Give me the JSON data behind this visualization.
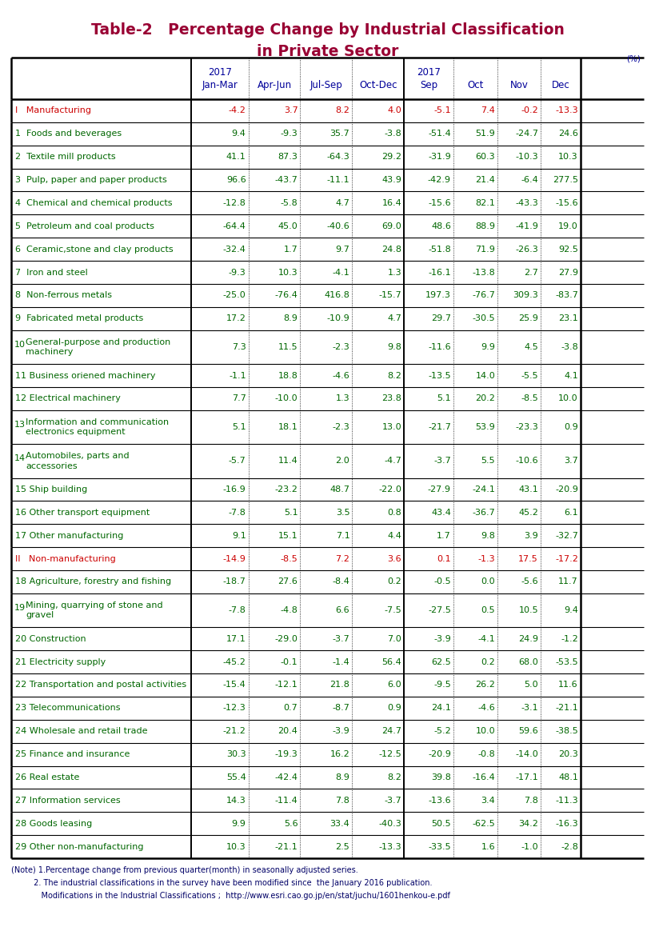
{
  "title_line1": "Table-2   Percentage Change by Industrial Classification",
  "title_line2": "in Private Sector",
  "title_color": "#990033",
  "percent_label": "(%)",
  "header_color": "#000099",
  "section_color": "#cc0000",
  "normal_color": "#006600",
  "rows": [
    {
      "label": "I   Manufacturing",
      "is_section": true,
      "num": "",
      "multiline": false,
      "values": [
        "-4.2",
        "3.7",
        "8.2",
        "4.0",
        "-5.1",
        "7.4",
        "-0.2",
        "-13.3"
      ]
    },
    {
      "label": "1  Foods and beverages",
      "is_section": false,
      "num": "",
      "multiline": false,
      "values": [
        "9.4",
        "-9.3",
        "35.7",
        "-3.8",
        "-51.4",
        "51.9",
        "-24.7",
        "24.6"
      ]
    },
    {
      "label": "2  Textile mill products",
      "is_section": false,
      "num": "",
      "multiline": false,
      "values": [
        "41.1",
        "87.3",
        "-64.3",
        "29.2",
        "-31.9",
        "60.3",
        "-10.3",
        "10.3"
      ]
    },
    {
      "label": "3  Pulp, paper and paper products",
      "is_section": false,
      "num": "",
      "multiline": false,
      "values": [
        "96.6",
        "-43.7",
        "-11.1",
        "43.9",
        "-42.9",
        "21.4",
        "-6.4",
        "277.5"
      ]
    },
    {
      "label": "4  Chemical and chemical products",
      "is_section": false,
      "num": "",
      "multiline": false,
      "values": [
        "-12.8",
        "-5.8",
        "4.7",
        "16.4",
        "-15.6",
        "82.1",
        "-43.3",
        "-15.6"
      ]
    },
    {
      "label": "5  Petroleum and coal products",
      "is_section": false,
      "num": "",
      "multiline": false,
      "values": [
        "-64.4",
        "45.0",
        "-40.6",
        "69.0",
        "48.6",
        "88.9",
        "-41.9",
        "19.0"
      ]
    },
    {
      "label": "6  Ceramic,stone and clay products",
      "is_section": false,
      "num": "",
      "multiline": false,
      "values": [
        "-32.4",
        "1.7",
        "9.7",
        "24.8",
        "-51.8",
        "71.9",
        "-26.3",
        "92.5"
      ]
    },
    {
      "label": "7  Iron and steel",
      "is_section": false,
      "num": "",
      "multiline": false,
      "values": [
        "-9.3",
        "10.3",
        "-4.1",
        "1.3",
        "-16.1",
        "-13.8",
        "2.7",
        "27.9"
      ]
    },
    {
      "label": "8  Non-ferrous metals",
      "is_section": false,
      "num": "",
      "multiline": false,
      "values": [
        "-25.0",
        "-76.4",
        "416.8",
        "-15.7",
        "197.3",
        "-76.7",
        "309.3",
        "-83.7"
      ]
    },
    {
      "label": "9  Fabricated metal products",
      "is_section": false,
      "num": "",
      "multiline": false,
      "values": [
        "17.2",
        "8.9",
        "-10.9",
        "4.7",
        "29.7",
        "-30.5",
        "25.9",
        "23.1"
      ]
    },
    {
      "label": "10",
      "label2": "General-purpose and production\nmachinery",
      "is_section": false,
      "num": "10",
      "multiline": true,
      "values": [
        "7.3",
        "11.5",
        "-2.3",
        "9.8",
        "-11.6",
        "9.9",
        "4.5",
        "-3.8"
      ]
    },
    {
      "label": "11 Business oriened machinery",
      "is_section": false,
      "num": "",
      "multiline": false,
      "values": [
        "-1.1",
        "18.8",
        "-4.6",
        "8.2",
        "-13.5",
        "14.0",
        "-5.5",
        "4.1"
      ]
    },
    {
      "label": "12 Electrical machinery",
      "is_section": false,
      "num": "",
      "multiline": false,
      "values": [
        "7.7",
        "-10.0",
        "1.3",
        "23.8",
        "5.1",
        "20.2",
        "-8.5",
        "10.0"
      ]
    },
    {
      "label": "13",
      "label2": "Information and communication\nelectronics equipment",
      "is_section": false,
      "num": "13",
      "multiline": true,
      "values": [
        "5.1",
        "18.1",
        "-2.3",
        "13.0",
        "-21.7",
        "53.9",
        "-23.3",
        "0.9"
      ]
    },
    {
      "label": "14",
      "label2": "Automobiles, parts and\naccessories",
      "is_section": false,
      "num": "14",
      "multiline": true,
      "values": [
        "-5.7",
        "11.4",
        "2.0",
        "-4.7",
        "-3.7",
        "5.5",
        "-10.6",
        "3.7"
      ]
    },
    {
      "label": "15 Ship building",
      "is_section": false,
      "num": "",
      "multiline": false,
      "values": [
        "-16.9",
        "-23.2",
        "48.7",
        "-22.0",
        "-27.9",
        "-24.1",
        "43.1",
        "-20.9"
      ]
    },
    {
      "label": "16 Other transport equipment",
      "is_section": false,
      "num": "",
      "multiline": false,
      "values": [
        "-7.8",
        "5.1",
        "3.5",
        "0.8",
        "43.4",
        "-36.7",
        "45.2",
        "6.1"
      ]
    },
    {
      "label": "17 Other manufacturing",
      "is_section": false,
      "num": "",
      "multiline": false,
      "values": [
        "9.1",
        "15.1",
        "7.1",
        "4.4",
        "1.7",
        "9.8",
        "3.9",
        "-32.7"
      ]
    },
    {
      "label": "II   Non-manufacturing",
      "is_section": true,
      "num": "",
      "multiline": false,
      "values": [
        "-14.9",
        "-8.5",
        "7.2",
        "3.6",
        "0.1",
        "-1.3",
        "17.5",
        "-17.2"
      ]
    },
    {
      "label": "18 Agriculture, forestry and fishing",
      "is_section": false,
      "num": "",
      "multiline": false,
      "values": [
        "-18.7",
        "27.6",
        "-8.4",
        "0.2",
        "-0.5",
        "0.0",
        "-5.6",
        "11.7"
      ]
    },
    {
      "label": "19",
      "label2": "Mining, quarrying of stone and\ngravel",
      "is_section": false,
      "num": "19",
      "multiline": true,
      "values": [
        "-7.8",
        "-4.8",
        "6.6",
        "-7.5",
        "-27.5",
        "0.5",
        "10.5",
        "9.4"
      ]
    },
    {
      "label": "20 Construction",
      "is_section": false,
      "num": "",
      "multiline": false,
      "values": [
        "17.1",
        "-29.0",
        "-3.7",
        "7.0",
        "-3.9",
        "-4.1",
        "24.9",
        "-1.2"
      ]
    },
    {
      "label": "21 Electricity supply",
      "is_section": false,
      "num": "",
      "multiline": false,
      "values": [
        "-45.2",
        "-0.1",
        "-1.4",
        "56.4",
        "62.5",
        "0.2",
        "68.0",
        "-53.5"
      ]
    },
    {
      "label": "22 Transportation and postal activities",
      "is_section": false,
      "num": "",
      "multiline": false,
      "values": [
        "-15.4",
        "-12.1",
        "21.8",
        "6.0",
        "-9.5",
        "26.2",
        "5.0",
        "11.6"
      ]
    },
    {
      "label": "23 Telecommunications",
      "is_section": false,
      "num": "",
      "multiline": false,
      "values": [
        "-12.3",
        "0.7",
        "-8.7",
        "0.9",
        "24.1",
        "-4.6",
        "-3.1",
        "-21.1"
      ]
    },
    {
      "label": "24 Wholesale and retail trade",
      "is_section": false,
      "num": "",
      "multiline": false,
      "values": [
        "-21.2",
        "20.4",
        "-3.9",
        "24.7",
        "-5.2",
        "10.0",
        "59.6",
        "-38.5"
      ]
    },
    {
      "label": "25 Finance and insurance",
      "is_section": false,
      "num": "",
      "multiline": false,
      "values": [
        "30.3",
        "-19.3",
        "16.2",
        "-12.5",
        "-20.9",
        "-0.8",
        "-14.0",
        "20.3"
      ]
    },
    {
      "label": "26 Real estate",
      "is_section": false,
      "num": "",
      "multiline": false,
      "values": [
        "55.4",
        "-42.4",
        "8.9",
        "8.2",
        "39.8",
        "-16.4",
        "-17.1",
        "48.1"
      ]
    },
    {
      "label": "27 Information services",
      "is_section": false,
      "num": "",
      "multiline": false,
      "values": [
        "14.3",
        "-11.4",
        "7.8",
        "-3.7",
        "-13.6",
        "3.4",
        "7.8",
        "-11.3"
      ]
    },
    {
      "label": "28 Goods leasing",
      "is_section": false,
      "num": "",
      "multiline": false,
      "values": [
        "9.9",
        "5.6",
        "33.4",
        "-40.3",
        "50.5",
        "-62.5",
        "34.2",
        "-16.3"
      ]
    },
    {
      "label": "29 Other non-manufacturing",
      "is_section": false,
      "num": "",
      "multiline": false,
      "values": [
        "10.3",
        "-21.1",
        "2.5",
        "-13.3",
        "-33.5",
        "1.6",
        "-1.0",
        "-2.8"
      ]
    }
  ],
  "note_lines": [
    "(Note) 1.Percentage change from previous quarter(month) in seasonally adjusted series.",
    "         2. The industrial classifications in the survey have been modified since  the January 2016 publication.",
    "            Modifications in the Industrial Classifications ;  http://www.esri.cao.go.jp/en/stat/juchu/1601henkou-e.pdf"
  ],
  "note_color": "#000066"
}
